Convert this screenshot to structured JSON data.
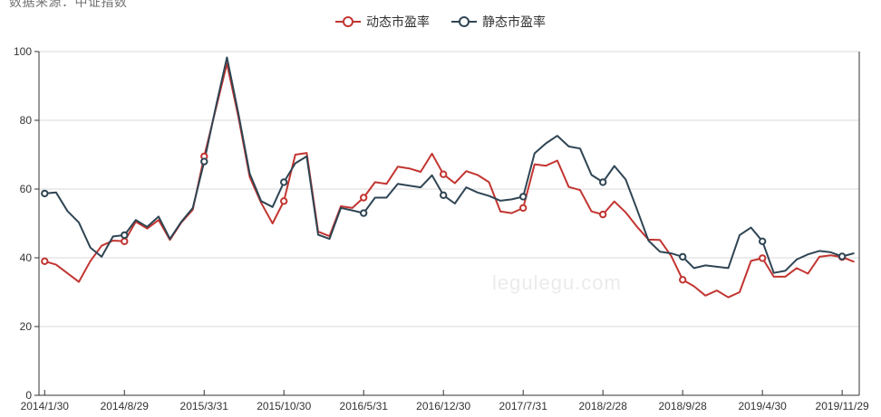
{
  "source_text": "数据来源：中证指数",
  "watermark": "legulegu.com",
  "palette": {
    "axis_color": "#333333",
    "grid_color": "#d8d8d8",
    "label_color": "#333333",
    "background": "#ffffff"
  },
  "chart_data": {
    "type": "line",
    "title": "",
    "xlabel": "",
    "ylabel": "",
    "ylim": [
      0,
      100
    ],
    "y_ticks": [
      0,
      20,
      40,
      60,
      80,
      100
    ],
    "grid": "horizontal",
    "legend_position": "top-center",
    "n_points": 72,
    "x_tick_labels": [
      "2014/1/30",
      "2014/8/29",
      "2015/3/31",
      "2015/10/30",
      "2016/5/31",
      "2016/12/30",
      "2017/7/31",
      "2018/2/28",
      "2018/9/28",
      "2019/4/30",
      "2019/11/29"
    ],
    "x_tick_indices": [
      0,
      7,
      14,
      21,
      28,
      35,
      42,
      49,
      56,
      63,
      70
    ],
    "marker_indices": [
      0,
      7,
      14,
      21,
      28,
      35,
      42,
      49,
      56,
      63,
      70
    ],
    "series": [
      {
        "name": "动态市盈率",
        "color": "#c23531",
        "values": [
          39,
          38,
          35.5,
          33,
          39,
          43.5,
          45,
          44.8,
          50.5,
          48.5,
          51,
          45.2,
          50.3,
          54,
          69.5,
          83,
          96.5,
          81,
          63.5,
          56,
          50,
          56.5,
          70,
          70.5,
          47.6,
          46.3,
          55,
          54.5,
          57.5,
          62,
          61.5,
          66.5,
          66,
          65,
          70.3,
          64.3,
          61.7,
          65.2,
          64.1,
          62,
          53.5,
          53,
          54.5,
          67.2,
          66.8,
          68.3,
          60.6,
          59.7,
          53.5,
          52.6,
          56.4,
          53.2,
          49,
          45.3,
          45.2,
          40.5,
          33.6,
          31.7,
          29,
          30.5,
          28.5,
          30,
          39.1,
          39.9,
          34.5,
          34.5,
          37,
          35.4,
          40.3,
          40.7,
          40.2,
          38.9
        ]
      },
      {
        "name": "静态市盈率",
        "color": "#2f4554",
        "values": [
          58.7,
          59,
          53.6,
          50.3,
          43,
          40.3,
          46.2,
          46.6,
          51,
          49,
          52,
          45.5,
          50.5,
          54.5,
          68,
          83.5,
          98.3,
          82,
          64.5,
          56.5,
          54.8,
          62,
          67.5,
          69.5,
          46.7,
          45.5,
          54.5,
          53.8,
          53,
          57.5,
          57.5,
          61.5,
          61,
          60.5,
          64,
          58.2,
          55.8,
          60.5,
          59,
          58,
          56.6,
          57,
          57.8,
          70.4,
          73.3,
          75.5,
          72.4,
          71.8,
          64.1,
          62,
          66.7,
          62.8,
          54,
          45,
          41.8,
          41.3,
          40.3,
          37,
          37.8,
          37.4,
          37,
          46.6,
          48.8,
          44.8,
          35.6,
          36.2,
          39.5,
          41,
          42,
          41.6,
          40.4,
          41.3
        ]
      }
    ]
  }
}
